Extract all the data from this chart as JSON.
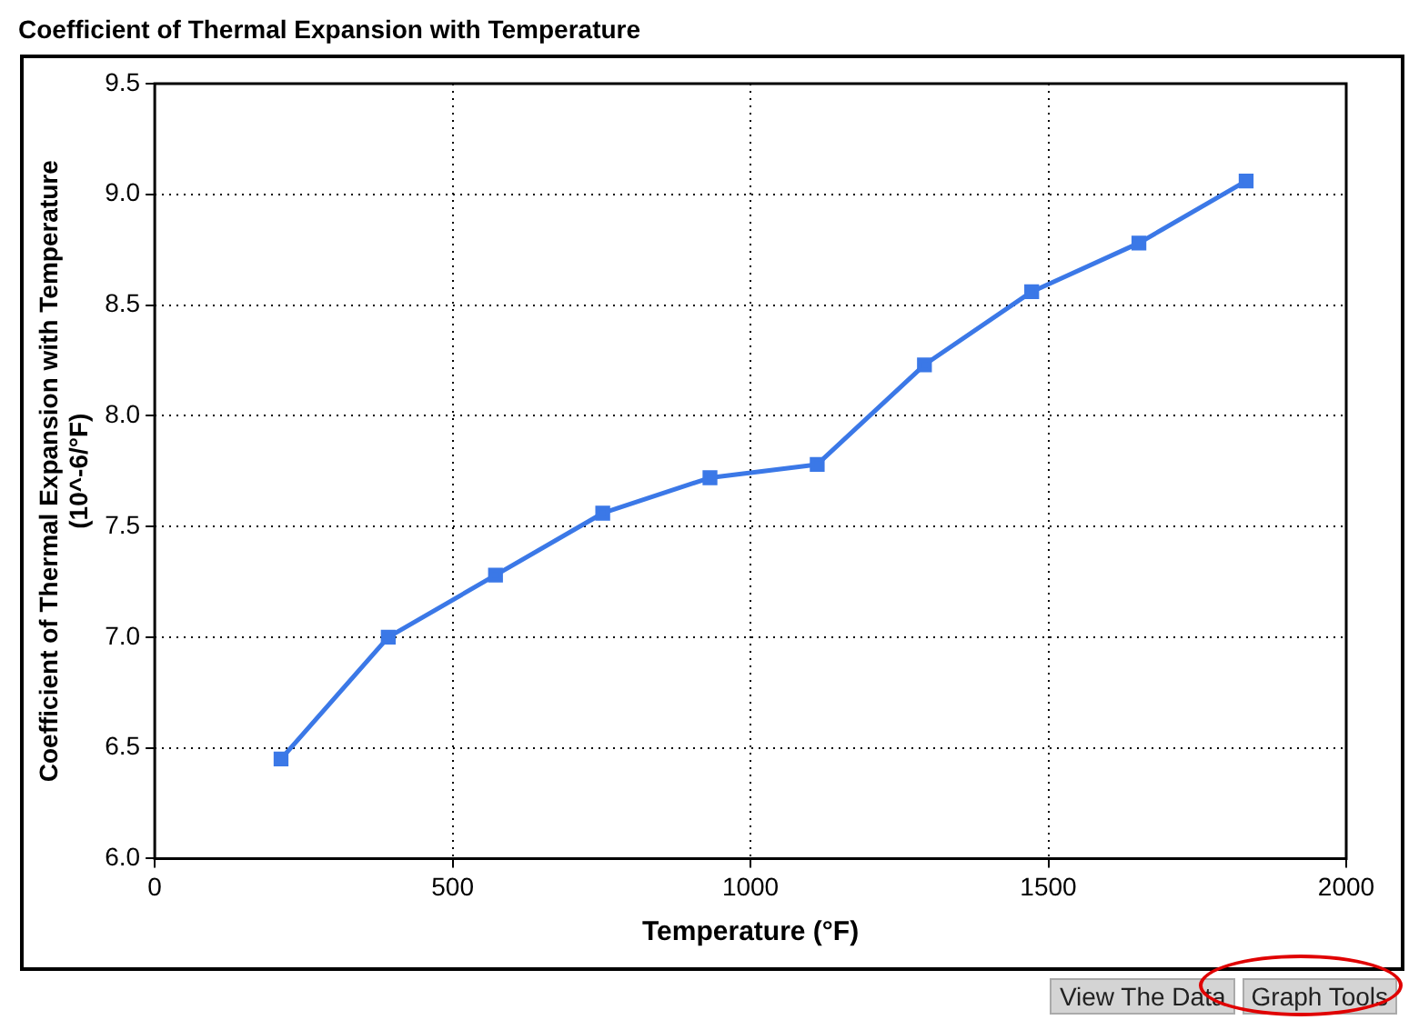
{
  "chart_data": {
    "type": "line",
    "title": "Coefficient of Thermal Expansion with Temperature",
    "xlabel": "Temperature (°F)",
    "ylabel": "Coefficient of Thermal Expansion with Temperature\n(10^-6/°F)",
    "x": [
      212,
      392,
      572,
      752,
      932,
      1112,
      1292,
      1472,
      1652,
      1832
    ],
    "series": [
      {
        "color": "#3b78e7",
        "values": [
          6.45,
          7.0,
          7.28,
          7.56,
          7.72,
          7.78,
          8.23,
          8.56,
          8.78,
          9.06
        ]
      }
    ],
    "xlim": [
      0,
      2000
    ],
    "xticks": [
      0,
      500,
      1000,
      1500,
      2000
    ],
    "ylim": [
      6.0,
      9.5
    ],
    "yticks": [
      {
        "value": 6.0,
        "label": "6.0"
      },
      {
        "value": 6.5,
        "label": "6.5"
      },
      {
        "value": 7.0,
        "label": "7.0"
      },
      {
        "value": 7.5,
        "label": "7.5"
      },
      {
        "value": 8.0,
        "label": "8.0"
      },
      {
        "value": 8.5,
        "label": "8.5"
      },
      {
        "value": 9.0,
        "label": "9.0"
      },
      {
        "value": 9.5,
        "label": "9.5"
      }
    ],
    "grid": true,
    "legend": false,
    "marker": "square",
    "line_style": "solid",
    "annotations": [
      "View The Data",
      "Graph Tools"
    ]
  }
}
